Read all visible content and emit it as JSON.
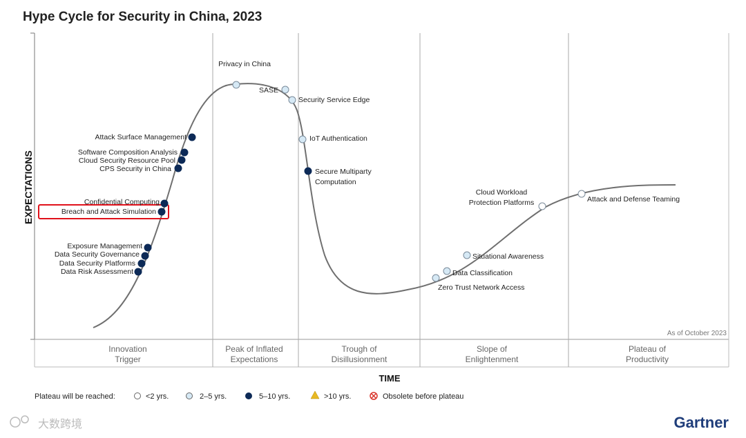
{
  "title": "Hype Cycle for Security in China, 2023",
  "colors": {
    "lt2": "#ffffff",
    "y2_5": "#d6e9f5",
    "y5_10": "#0d2a57",
    "gt10": "#e8b923",
    "obsolete": "#d9342b",
    "curve": "#6f6f6f",
    "highlight": "#e0101a"
  },
  "chart_data": {
    "type": "scatter",
    "title": "Hype Cycle for Security in China, 2023",
    "xlabel": "TIME",
    "ylabel": "EXPECTATIONS",
    "as_of": "As of October 2023",
    "phases": [
      {
        "name": "Innovation",
        "name2": "Trigger"
      },
      {
        "name": "Peak of Inflated",
        "name2": "Expectations"
      },
      {
        "name": "Trough of",
        "name2": "Disillusionment"
      },
      {
        "name": "Slope of",
        "name2": "Enlightenment"
      },
      {
        "name": "Plateau of",
        "name2": "Productivity"
      }
    ],
    "technologies": [
      {
        "label": "Privacy in China",
        "category": "2-5"
      },
      {
        "label": "SASE",
        "category": "2-5"
      },
      {
        "label": "Security Service Edge",
        "category": "2-5"
      },
      {
        "label": "IoT Authentication",
        "category": "2-5"
      },
      {
        "label": "Secure Multiparty",
        "label2": "Computation",
        "category": "5-10"
      },
      {
        "label": "Attack Surface Management",
        "category": "5-10"
      },
      {
        "label": "Software Composition Analysis",
        "category": "5-10"
      },
      {
        "label": "Cloud Security Resource Pool",
        "category": "5-10"
      },
      {
        "label": "CPS Security in China",
        "category": "5-10"
      },
      {
        "label": "Confidential Computing",
        "category": "5-10"
      },
      {
        "label": "Breach and Attack Simulation",
        "category": "5-10",
        "highlighted": true
      },
      {
        "label": "Exposure Management",
        "category": "5-10"
      },
      {
        "label": "Data Security Governance",
        "category": "5-10"
      },
      {
        "label": "Data Security Platforms",
        "category": "5-10"
      },
      {
        "label": "Data Risk Assessment",
        "category": "5-10"
      },
      {
        "label": "Zero Trust Network Access",
        "category": "2-5"
      },
      {
        "label": "Data Classification",
        "category": "2-5"
      },
      {
        "label": "Situational Awareness",
        "category": "2-5"
      },
      {
        "label": "Cloud Workload",
        "label2": "Protection Platforms",
        "category": "<2"
      },
      {
        "label": "Attack and Defense Teaming",
        "category": "<2"
      }
    ]
  },
  "legend": {
    "prefix": "Plateau will be reached:",
    "items": [
      {
        "key": "<2",
        "label": "<2 yrs."
      },
      {
        "key": "2-5",
        "label": "2–5 yrs."
      },
      {
        "key": "5-10",
        "label": "5–10 yrs."
      },
      {
        "key": ">10",
        "label": ">10 yrs."
      },
      {
        "key": "obsolete",
        "label": "Obsolete before plateau"
      }
    ]
  },
  "brand": "Gartner",
  "watermark": "大数跨境"
}
